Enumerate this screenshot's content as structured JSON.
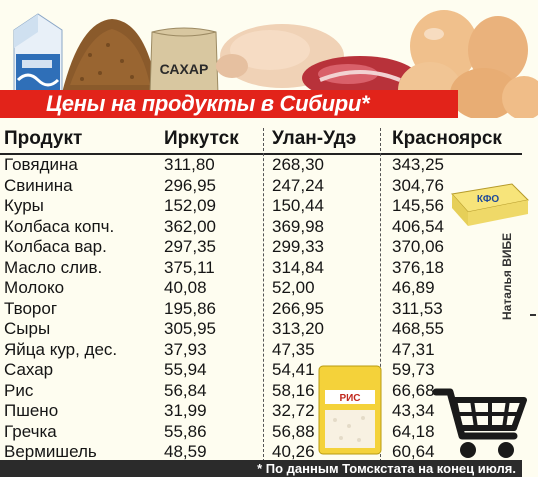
{
  "banner": {
    "title": "Цены на продукты в Сибири*"
  },
  "illustrations": {
    "sugar_label": "САХАР",
    "butter_label": "КФО",
    "rice_label": "РИС"
  },
  "table": {
    "headers": [
      "Продукт",
      "Иркутск",
      "Улан-Удэ",
      "Красноярск"
    ],
    "rows": [
      [
        "Говядина",
        "311,80",
        "268,30",
        "343,25"
      ],
      [
        "Свинина",
        "296,95",
        "247,24",
        "304,76"
      ],
      [
        "Куры",
        "152,09",
        "150,44",
        "145,56"
      ],
      [
        "Колбаса копч.",
        "362,00",
        "369,98",
        "406,54"
      ],
      [
        "Колбаса вар.",
        "297,35",
        "299,33",
        "370,06"
      ],
      [
        "Масло слив.",
        "375,11",
        "314,84",
        "376,18"
      ],
      [
        "Молоко",
        "40,08",
        "52,00",
        "46,89"
      ],
      [
        "Творог",
        "195,86",
        "266,95",
        "311,53"
      ],
      [
        "Сыры",
        "305,95",
        "313,20",
        "468,55"
      ],
      [
        "Яйца кур, дес.",
        "37,93",
        "47,35",
        "47,31"
      ],
      [
        "Сахар",
        "55,94",
        "54,41",
        "59,73"
      ],
      [
        "Рис",
        "56,84",
        "58,16",
        "66,68"
      ],
      [
        "Пшено",
        "31,99",
        "32,72",
        "43,34"
      ],
      [
        "Гречка",
        "55,86",
        "56,88",
        "64,18"
      ],
      [
        "Вермишель",
        "48,59",
        "40,26",
        "60,64"
      ]
    ]
  },
  "author": "Наталья ВИБЕ",
  "footnote": "* По данным Томскстата на конец июля.",
  "colors": {
    "banner": "#e2231a",
    "footnote_bg": "#2b2b2b",
    "text": "#151515"
  },
  "icons": [
    "milk-carton-icon",
    "buckwheat-icon",
    "sugar-bag-icon",
    "chicken-icon",
    "meat-icon",
    "eggs-icon",
    "butter-icon",
    "rice-pack-icon",
    "shopping-cart-icon"
  ]
}
